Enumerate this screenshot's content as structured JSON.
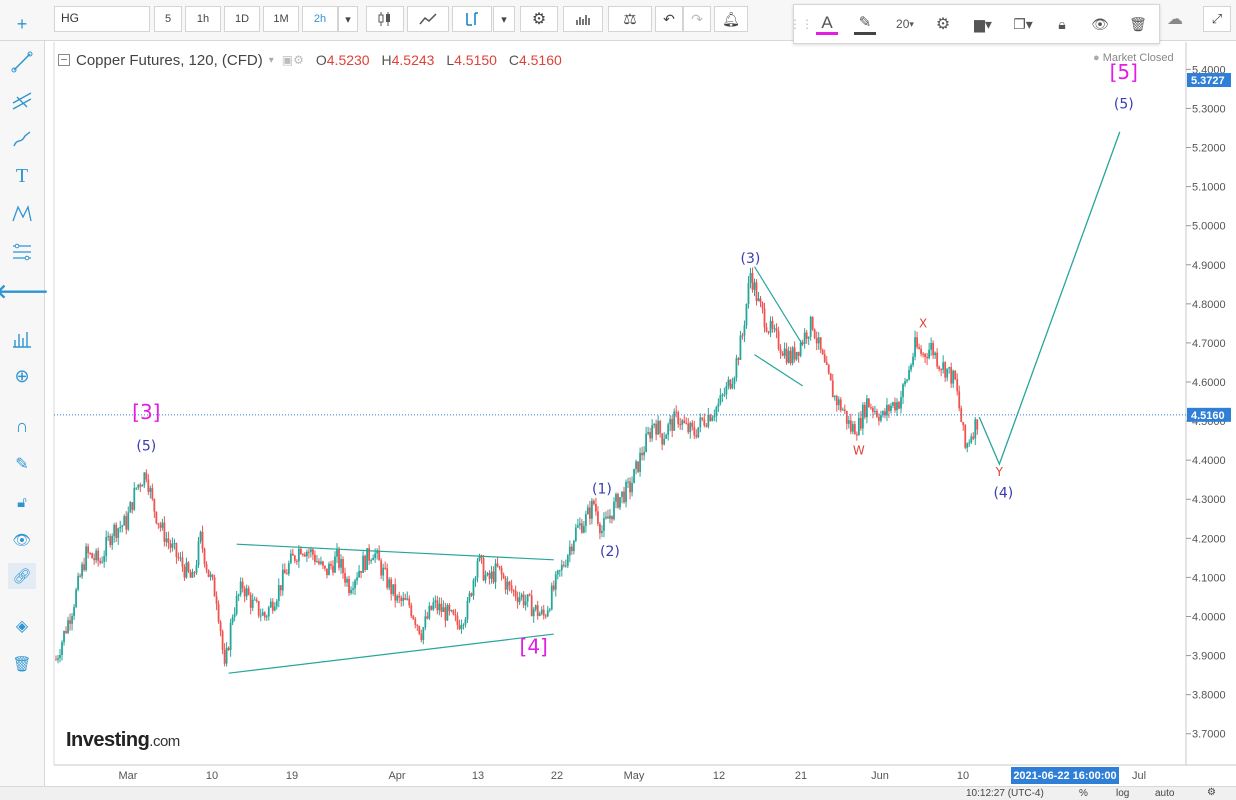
{
  "toolbar": {
    "symbol": "HG",
    "intervals": [
      "5",
      "1h",
      "1D",
      "1M",
      "2h"
    ],
    "active_interval": "2h"
  },
  "drawing_toolbar": {
    "font_size": "20"
  },
  "legend": {
    "title": "Copper Futures, 120, (CFD)",
    "o_label": "O",
    "o_value": "4.5230",
    "h_label": "H",
    "h_value": "4.5243",
    "l_label": "L",
    "l_value": "4.5150",
    "c_label": "C",
    "c_value": "4.5160",
    "market_status": "Market Closed"
  },
  "watermark": {
    "brand": "Investing",
    "suffix": ".com"
  },
  "status": {
    "time": "10:12:27 (UTC-4)",
    "percent": "%",
    "log": "log",
    "auto": "auto"
  },
  "colors": {
    "up": "#26a69a",
    "down": "#ef5350",
    "pattern": "#26a69a",
    "wave_major": "#e31ee3",
    "wave_minor": "#3b3bb3",
    "wxy": "#e0413a",
    "last_price": "#2f7fd6",
    "axis_highlight": "#2f7fd6"
  },
  "chart_data": {
    "type": "candlestick",
    "y_axis": {
      "ticks": [
        "3.7000",
        "3.8000",
        "3.9000",
        "4.0000",
        "4.1000",
        "4.2000",
        "4.3000",
        "4.4000",
        "4.5000",
        "4.6000",
        "4.7000",
        "4.8000",
        "4.9000",
        "5.0000",
        "5.1000",
        "5.2000",
        "5.3000",
        "5.4000"
      ],
      "range": [
        3.62,
        5.47
      ],
      "top_label": "5.3727",
      "last_price_label": "4.5160",
      "last_price": 4.516
    },
    "x_axis": {
      "ticks": [
        "Mar",
        "10",
        "19",
        "Apr",
        "13",
        "22",
        "May",
        "12",
        "21",
        "Jun",
        "10",
        "Jul"
      ],
      "highlight_label": "2021-06-22 16:00:00"
    },
    "price_path": [
      [
        0,
        3.89
      ],
      [
        8,
        4.02
      ],
      [
        15,
        4.16
      ],
      [
        22,
        4.14
      ],
      [
        28,
        4.22
      ],
      [
        35,
        4.24
      ],
      [
        40,
        4.33
      ],
      [
        45,
        4.37
      ],
      [
        48,
        4.29
      ],
      [
        52,
        4.23
      ],
      [
        57,
        4.18
      ],
      [
        63,
        4.13
      ],
      [
        68,
        4.09
      ],
      [
        72,
        4.2
      ],
      [
        76,
        4.11
      ],
      [
        80,
        4.05
      ],
      [
        82,
        3.97
      ],
      [
        84,
        3.86
      ],
      [
        88,
        4.01
      ],
      [
        93,
        4.08
      ],
      [
        98,
        4.03
      ],
      [
        104,
        4.0
      ],
      [
        110,
        4.06
      ],
      [
        116,
        4.13
      ],
      [
        122,
        4.18
      ],
      [
        128,
        4.16
      ],
      [
        134,
        4.11
      ],
      [
        140,
        4.15
      ],
      [
        146,
        4.08
      ],
      [
        152,
        4.13
      ],
      [
        158,
        4.17
      ],
      [
        164,
        4.1
      ],
      [
        170,
        4.04
      ],
      [
        176,
        4.03
      ],
      [
        182,
        3.96
      ],
      [
        188,
        4.03
      ],
      [
        194,
        4.01
      ],
      [
        200,
        3.98
      ],
      [
        205,
        4.02
      ],
      [
        210,
        4.15
      ],
      [
        215,
        4.09
      ],
      [
        220,
        4.12
      ],
      [
        226,
        4.07
      ],
      [
        232,
        4.05
      ],
      [
        238,
        4.02
      ],
      [
        243,
        4.0
      ],
      [
        248,
        4.07
      ],
      [
        254,
        4.15
      ],
      [
        259,
        4.22
      ],
      [
        264,
        4.25
      ],
      [
        268,
        4.29
      ],
      [
        272,
        4.22
      ],
      [
        276,
        4.26
      ],
      [
        280,
        4.3
      ],
      [
        286,
        4.33
      ],
      [
        292,
        4.42
      ],
      [
        298,
        4.5
      ],
      [
        302,
        4.46
      ],
      [
        306,
        4.49
      ],
      [
        310,
        4.51
      ],
      [
        314,
        4.48
      ],
      [
        318,
        4.47
      ],
      [
        322,
        4.5
      ],
      [
        326,
        4.52
      ],
      [
        330,
        4.54
      ],
      [
        334,
        4.58
      ],
      [
        338,
        4.63
      ],
      [
        342,
        4.72
      ],
      [
        346,
        4.88
      ],
      [
        350,
        4.8
      ],
      [
        355,
        4.74
      ],
      [
        360,
        4.7
      ],
      [
        366,
        4.66
      ],
      [
        370,
        4.69
      ],
      [
        374,
        4.73
      ],
      [
        377,
        4.75
      ],
      [
        380,
        4.69
      ],
      [
        384,
        4.62
      ],
      [
        388,
        4.56
      ],
      [
        392,
        4.53
      ],
      [
        396,
        4.48
      ],
      [
        400,
        4.49
      ],
      [
        404,
        4.55
      ],
      [
        408,
        4.53
      ],
      [
        412,
        4.51
      ],
      [
        416,
        4.54
      ],
      [
        420,
        4.55
      ],
      [
        424,
        4.61
      ],
      [
        428,
        4.69
      ],
      [
        432,
        4.67
      ],
      [
        436,
        4.69
      ],
      [
        440,
        4.65
      ],
      [
        444,
        4.63
      ],
      [
        448,
        4.6
      ],
      [
        451,
        4.5
      ],
      [
        453,
        4.43
      ],
      [
        456,
        4.47
      ],
      [
        460,
        4.51
      ]
    ],
    "projection": [
      [
        460,
        4.51
      ],
      [
        470,
        4.39
      ],
      [
        530,
        5.24
      ]
    ],
    "annotations": [
      {
        "text": "[3]",
        "x": 45,
        "y": 4.505,
        "series": "major"
      },
      {
        "text": "(5)",
        "x": 45,
        "y": 4.425,
        "series": "minor"
      },
      {
        "text": "(1)",
        "x": 272,
        "y": 4.315,
        "series": "minor"
      },
      {
        "text": "(2)",
        "x": 276,
        "y": 4.155,
        "series": "minor"
      },
      {
        "text": "(3)",
        "x": 346,
        "y": 4.905,
        "series": "minor"
      },
      {
        "text": "W",
        "x": 400,
        "y": 4.415,
        "series": "wxy"
      },
      {
        "text": "X",
        "x": 432,
        "y": 4.74,
        "series": "wxy"
      },
      {
        "text": "Y",
        "x": 470,
        "y": 4.36,
        "series": "wxy"
      },
      {
        "text": "(4)",
        "x": 472,
        "y": 4.305,
        "series": "minor"
      },
      {
        "text": "[4]",
        "x": 238,
        "y": 3.905,
        "series": "major"
      },
      {
        "text": "[5]",
        "x": 532,
        "y": 5.375,
        "series": "major"
      },
      {
        "text": "(5)",
        "x": 532,
        "y": 5.3,
        "series": "minor"
      }
    ],
    "trendlines": [
      [
        [
          90,
          4.185
        ],
        [
          248,
          4.145
        ]
      ],
      [
        [
          86,
          3.855
        ],
        [
          248,
          3.955
        ]
      ],
      [
        [
          348,
          4.895
        ],
        [
          372,
          4.695
        ]
      ],
      [
        [
          348,
          4.67
        ],
        [
          372,
          4.59
        ]
      ]
    ],
    "x_range": [
      0,
      560
    ]
  }
}
